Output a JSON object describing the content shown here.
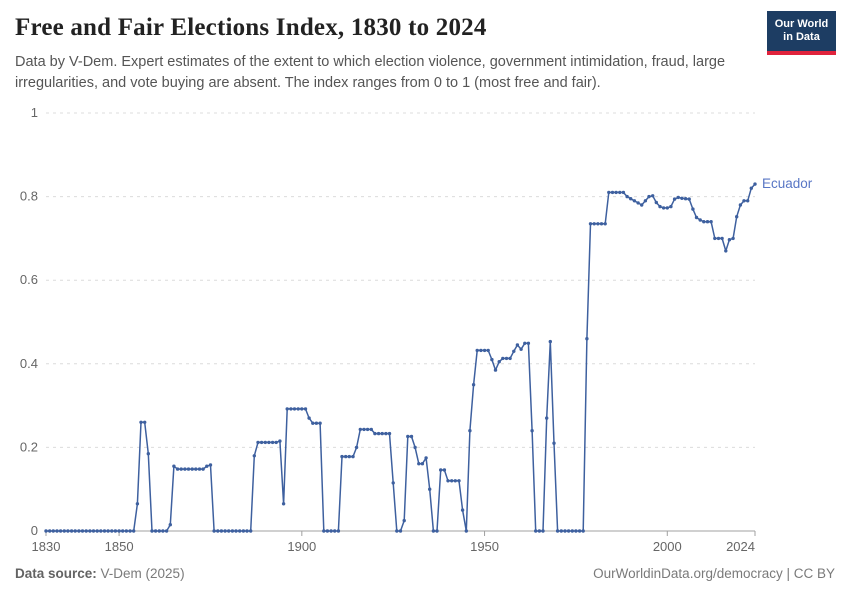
{
  "header": {
    "title": "Free and Fair Elections Index, 1830 to 2024",
    "subtitle": "Data by V-Dem. Expert estimates of the extent to which election violence, government intimidation, fraud, large irregularities, and vote buying are absent. The index ranges from 0 to 1 (most free and fair).",
    "logo": {
      "line1": "Our World",
      "line2": "in Data"
    }
  },
  "footer": {
    "source_label": "Data source:",
    "source_value": " V-Dem (2025)",
    "right_text": "OurWorldinData.org/democracy | CC BY"
  },
  "colors": {
    "line": "#3e609f",
    "entity_label": "#5876c5",
    "grid": "#dcdcdc",
    "axis": "#a0a0a0",
    "tick_text": "#666666",
    "logo_navy": "#1d3d63",
    "logo_red": "#e0233c"
  },
  "chart_data": {
    "type": "line",
    "title": "Free and Fair Elections Index, 1830 to 2024",
    "entity": "Ecuador",
    "xlabel": "",
    "ylabel": "",
    "start_year": 1830,
    "end_year": 2024,
    "x_ticks": [
      1830,
      1850,
      1900,
      1950,
      2000,
      2024
    ],
    "y_ticks": [
      0,
      0.2,
      0.4,
      0.6,
      0.8,
      1
    ],
    "ylim": [
      0,
      1
    ],
    "grid": "dashed horizontal gridlines, solid baseline at 0",
    "legend_position": "end-of-line label",
    "values": [
      0,
      0,
      0,
      0,
      0,
      0,
      0,
      0,
      0,
      0,
      0,
      0,
      0,
      0,
      0,
      0,
      0,
      0,
      0,
      0,
      0,
      0,
      0,
      0,
      0,
      0.065,
      0.26,
      0.26,
      0.185,
      0,
      0,
      0,
      0,
      0,
      0.015,
      0.155,
      0.148,
      0.148,
      0.148,
      0.148,
      0.148,
      0.148,
      0.148,
      0.148,
      0.155,
      0.158,
      0,
      0,
      0,
      0,
      0,
      0,
      0,
      0,
      0,
      0,
      0,
      0.18,
      0.212,
      0.212,
      0.212,
      0.212,
      0.212,
      0.212,
      0.215,
      0.065,
      0.292,
      0.292,
      0.292,
      0.292,
      0.292,
      0.292,
      0.27,
      0.258,
      0.258,
      0.258,
      0,
      0,
      0,
      0,
      0,
      0.178,
      0.178,
      0.178,
      0.178,
      0.2,
      0.243,
      0.243,
      0.243,
      0.243,
      0.233,
      0.233,
      0.233,
      0.233,
      0.233,
      0.115,
      0,
      0,
      0.025,
      0.226,
      0.226,
      0.2,
      0.161,
      0.161,
      0.175,
      0.1,
      0,
      0,
      0.146,
      0.146,
      0.12,
      0.12,
      0.12,
      0.12,
      0.05,
      0,
      0.24,
      0.35,
      0.432,
      0.432,
      0.432,
      0.432,
      0.41,
      0.385,
      0.405,
      0.413,
      0.413,
      0.413,
      0.43,
      0.445,
      0.435,
      0.449,
      0.449,
      0.24,
      0,
      0,
      0,
      0.27,
      0.453,
      0.21,
      0,
      0,
      0,
      0,
      0,
      0,
      0,
      0,
      0.46,
      0.735,
      0.735,
      0.735,
      0.735,
      0.735,
      0.81,
      0.81,
      0.81,
      0.81,
      0.81,
      0.8,
      0.795,
      0.79,
      0.785,
      0.78,
      0.79,
      0.8,
      0.802,
      0.786,
      0.776,
      0.773,
      0.773,
      0.776,
      0.794,
      0.798,
      0.796,
      0.795,
      0.794,
      0.77,
      0.75,
      0.744,
      0.74,
      0.74,
      0.74,
      0.7,
      0.7,
      0.7,
      0.67,
      0.697,
      0.7,
      0.752,
      0.78,
      0.79,
      0.79,
      0.82,
      0.83
    ]
  }
}
